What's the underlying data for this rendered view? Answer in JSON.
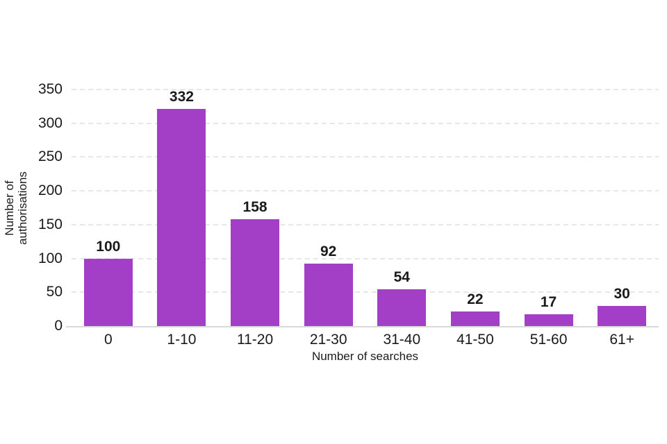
{
  "chart_data": {
    "type": "bar",
    "title": "",
    "categories": [
      "0",
      "1-10",
      "11-20",
      "21-30",
      "31-40",
      "41-50",
      "51-60",
      "61+"
    ],
    "values": [
      100,
      332,
      158,
      92,
      54,
      22,
      17,
      30
    ],
    "xlabel": "Number of searches",
    "ylabel": "Number of authorisations",
    "ylabel_lines": [
      "Number of",
      "authorisations"
    ],
    "ylim": [
      0,
      350
    ],
    "yticks": [
      0,
      50,
      100,
      150,
      200,
      250,
      300,
      350
    ],
    "legend_position": "none",
    "grid": "horizontal-dashed",
    "data_labels_shown": true,
    "colors": {
      "bar": "#a33fc6",
      "gridline": "#e7e7e7",
      "axis_line": "#d9d9d9",
      "text": "#1a1a1a"
    }
  }
}
